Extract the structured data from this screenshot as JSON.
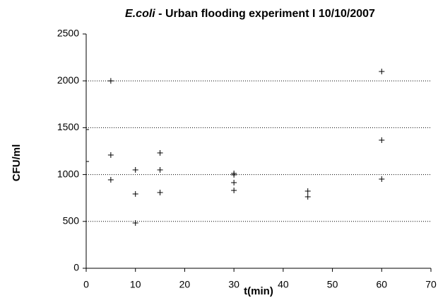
{
  "chart_data": {
    "type": "scatter",
    "title": [
      "E.coli",
      " - Urban flooding experiment I 10/10/2007"
    ],
    "x_label": "t(min)",
    "y_label": "CFU/ml",
    "series": [
      {
        "color": "#000000",
        "x": [
          0,
          0,
          5,
          5,
          5,
          10,
          10,
          10,
          15,
          15,
          15,
          30,
          30,
          30,
          30,
          45,
          45,
          60,
          60,
          60
        ],
        "values": [
          1140,
          1480,
          2000,
          1208,
          944,
          1050,
          793,
          483,
          1231,
          1050,
          808,
          1012,
          997,
          914,
          831,
          823,
          763,
          2100,
          1367,
          952
        ]
      }
    ],
    "xlim": [
      0,
      70
    ],
    "xticks": [
      0,
      10,
      20,
      30,
      40,
      50,
      60,
      70
    ],
    "ylim": [
      0,
      2500
    ],
    "yticks": [
      0,
      500,
      1000,
      1500,
      2000,
      2500
    ],
    "grid": true
  }
}
